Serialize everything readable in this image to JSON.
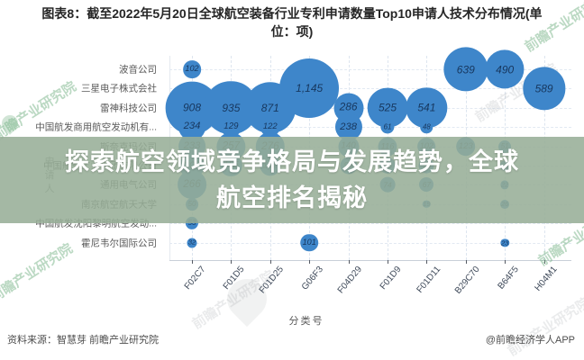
{
  "title": {
    "line1": "图表8：截至2022年5月20日全球航空装备行业专利申请数量Top10申请人技术分布情况(单",
    "line2": "位：项)"
  },
  "overlay": {
    "line1": "探索航空领域竞争格局与发展趋势，全球",
    "line2": "航空排名揭秘"
  },
  "footer": {
    "source": "资料来源：智慧芽 前瞻产业研究院",
    "credit": "@前瞻经济学人APP"
  },
  "watermark": {
    "text": "前瞻产业研究院"
  },
  "colors": {
    "bubble": "#3E86CA",
    "bubble_text": "#17375E",
    "overlay_bg": "rgba(151,173,151,0.87)",
    "grid": "#DDE5EF",
    "axis": "#C9CFD8",
    "watermark_green": "#7AB489",
    "watermark_gray": "#9AA0A6"
  },
  "chart_data": {
    "type": "scatter",
    "subtype": "bubble",
    "title": "截至2022年5月20日全球航空装备行业专利申请数量Top10申请人技术分布情况",
    "unit": "项",
    "xlabel": "分类号",
    "ylabel": "申请人",
    "legend": "none",
    "grid": "dashed",
    "categories": [
      "F02C7",
      "F01D5",
      "F01D25",
      "G06F3",
      "F04D29",
      "F01D9",
      "F01D11",
      "B29C70",
      "B64F5",
      "H04M1"
    ],
    "series": [
      {
        "name": "波音公司",
        "values": {
          "F02C7": 102,
          "B29C70": 639,
          "B64F5": 490
        }
      },
      {
        "name": "三星电子株式会社",
        "values": {
          "G06F3": 1145,
          "H04M1": 589
        }
      },
      {
        "name": "雷神科技公司",
        "values": {
          "F02C7": 908,
          "F01D5": 935,
          "F01D25": 871,
          "F04D29": 286,
          "F01D9": 525,
          "F01D11": 541
        }
      },
      {
        "name": "中国航发商用航空发动机有...",
        "values": {
          "F02C7": 234,
          "F01D5": 129,
          "F01D25": 122,
          "F04D29": 238,
          "F01D9": 61,
          "F01D11": 48
        }
      },
      {
        "name": "斯奈克玛公司",
        "values": {
          "F02C7": 233,
          "F01D5": 257,
          "F01D25": 276,
          "F04D29": 140,
          "F01D9": 116,
          "F01D11": 102,
          "B29C70": 123,
          "B64F5": 51
        }
      },
      {
        "name": "中国航空工业集团有限公司",
        "values": {
          "F02C7": 208,
          "F01D5": 155,
          "F01D25": 142,
          "F04D29": 96,
          "F01D9": 88,
          "F01D11": 75,
          "B64F5": 30
        }
      },
      {
        "name": "通用电气公司",
        "values": {
          "F02C7": 266,
          "F01D9": 74,
          "F01D11": 67,
          "B64F5": 22
        }
      },
      {
        "name": "南京航空航天大学",
        "values": {
          "F02C7": 50,
          "F01D11": 19,
          "B64F5": 26
        }
      },
      {
        "name": "中国航发沈阳黎明航空发动...",
        "values": {
          "F02C7": 53
        }
      },
      {
        "name": "霍尼韦尔国际公司",
        "values": {
          "F02C7": 32,
          "G06F3": 101,
          "B64F5": 23
        }
      }
    ]
  }
}
